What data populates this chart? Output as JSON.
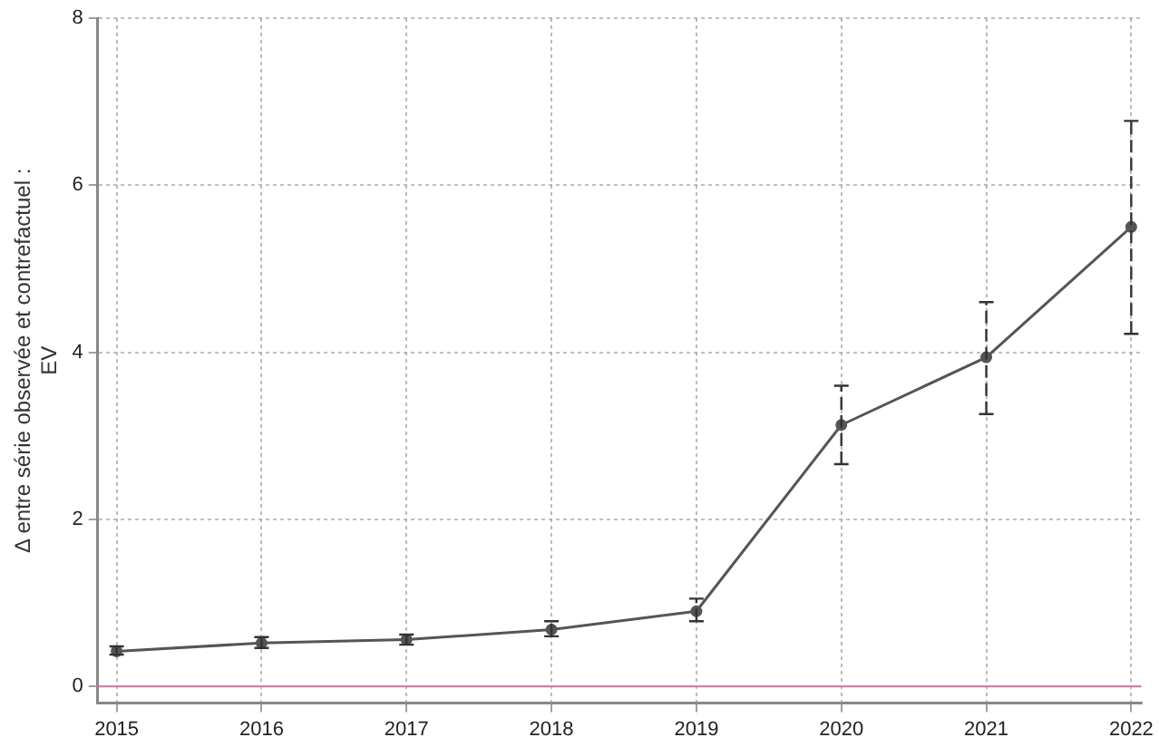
{
  "chart_data": {
    "type": "line",
    "ylabel": "Δ entre série observée et contrefactuel :\nEV",
    "x": [
      2015,
      2016,
      2017,
      2018,
      2019,
      2020,
      2021,
      2022
    ],
    "series": [
      {
        "color": "#555555",
        "values": [
          0.42,
          0.52,
          0.56,
          0.68,
          0.9,
          3.13,
          3.94,
          5.5
        ],
        "errors": [
          [
            0.38,
            0.48
          ],
          [
            0.46,
            0.59
          ],
          [
            0.5,
            0.62
          ],
          [
            0.6,
            0.78
          ],
          [
            0.78,
            1.05
          ],
          [
            2.66,
            3.6
          ],
          [
            3.26,
            4.6
          ],
          [
            4.22,
            6.77
          ]
        ]
      }
    ],
    "xlim": [
      2014.87,
      2022.07
    ],
    "xticks": [
      2015,
      2016,
      2017,
      2018,
      2019,
      2020,
      2021,
      2022
    ],
    "ylim": [
      -0.2,
      8
    ],
    "yticks": [
      0,
      2,
      4,
      6,
      8
    ],
    "ref_lines": [
      {
        "axis": "y",
        "value": 0,
        "color": "#d080a8"
      }
    ],
    "grid": true,
    "legend": false,
    "marker": "circle",
    "line_style": "solid"
  }
}
